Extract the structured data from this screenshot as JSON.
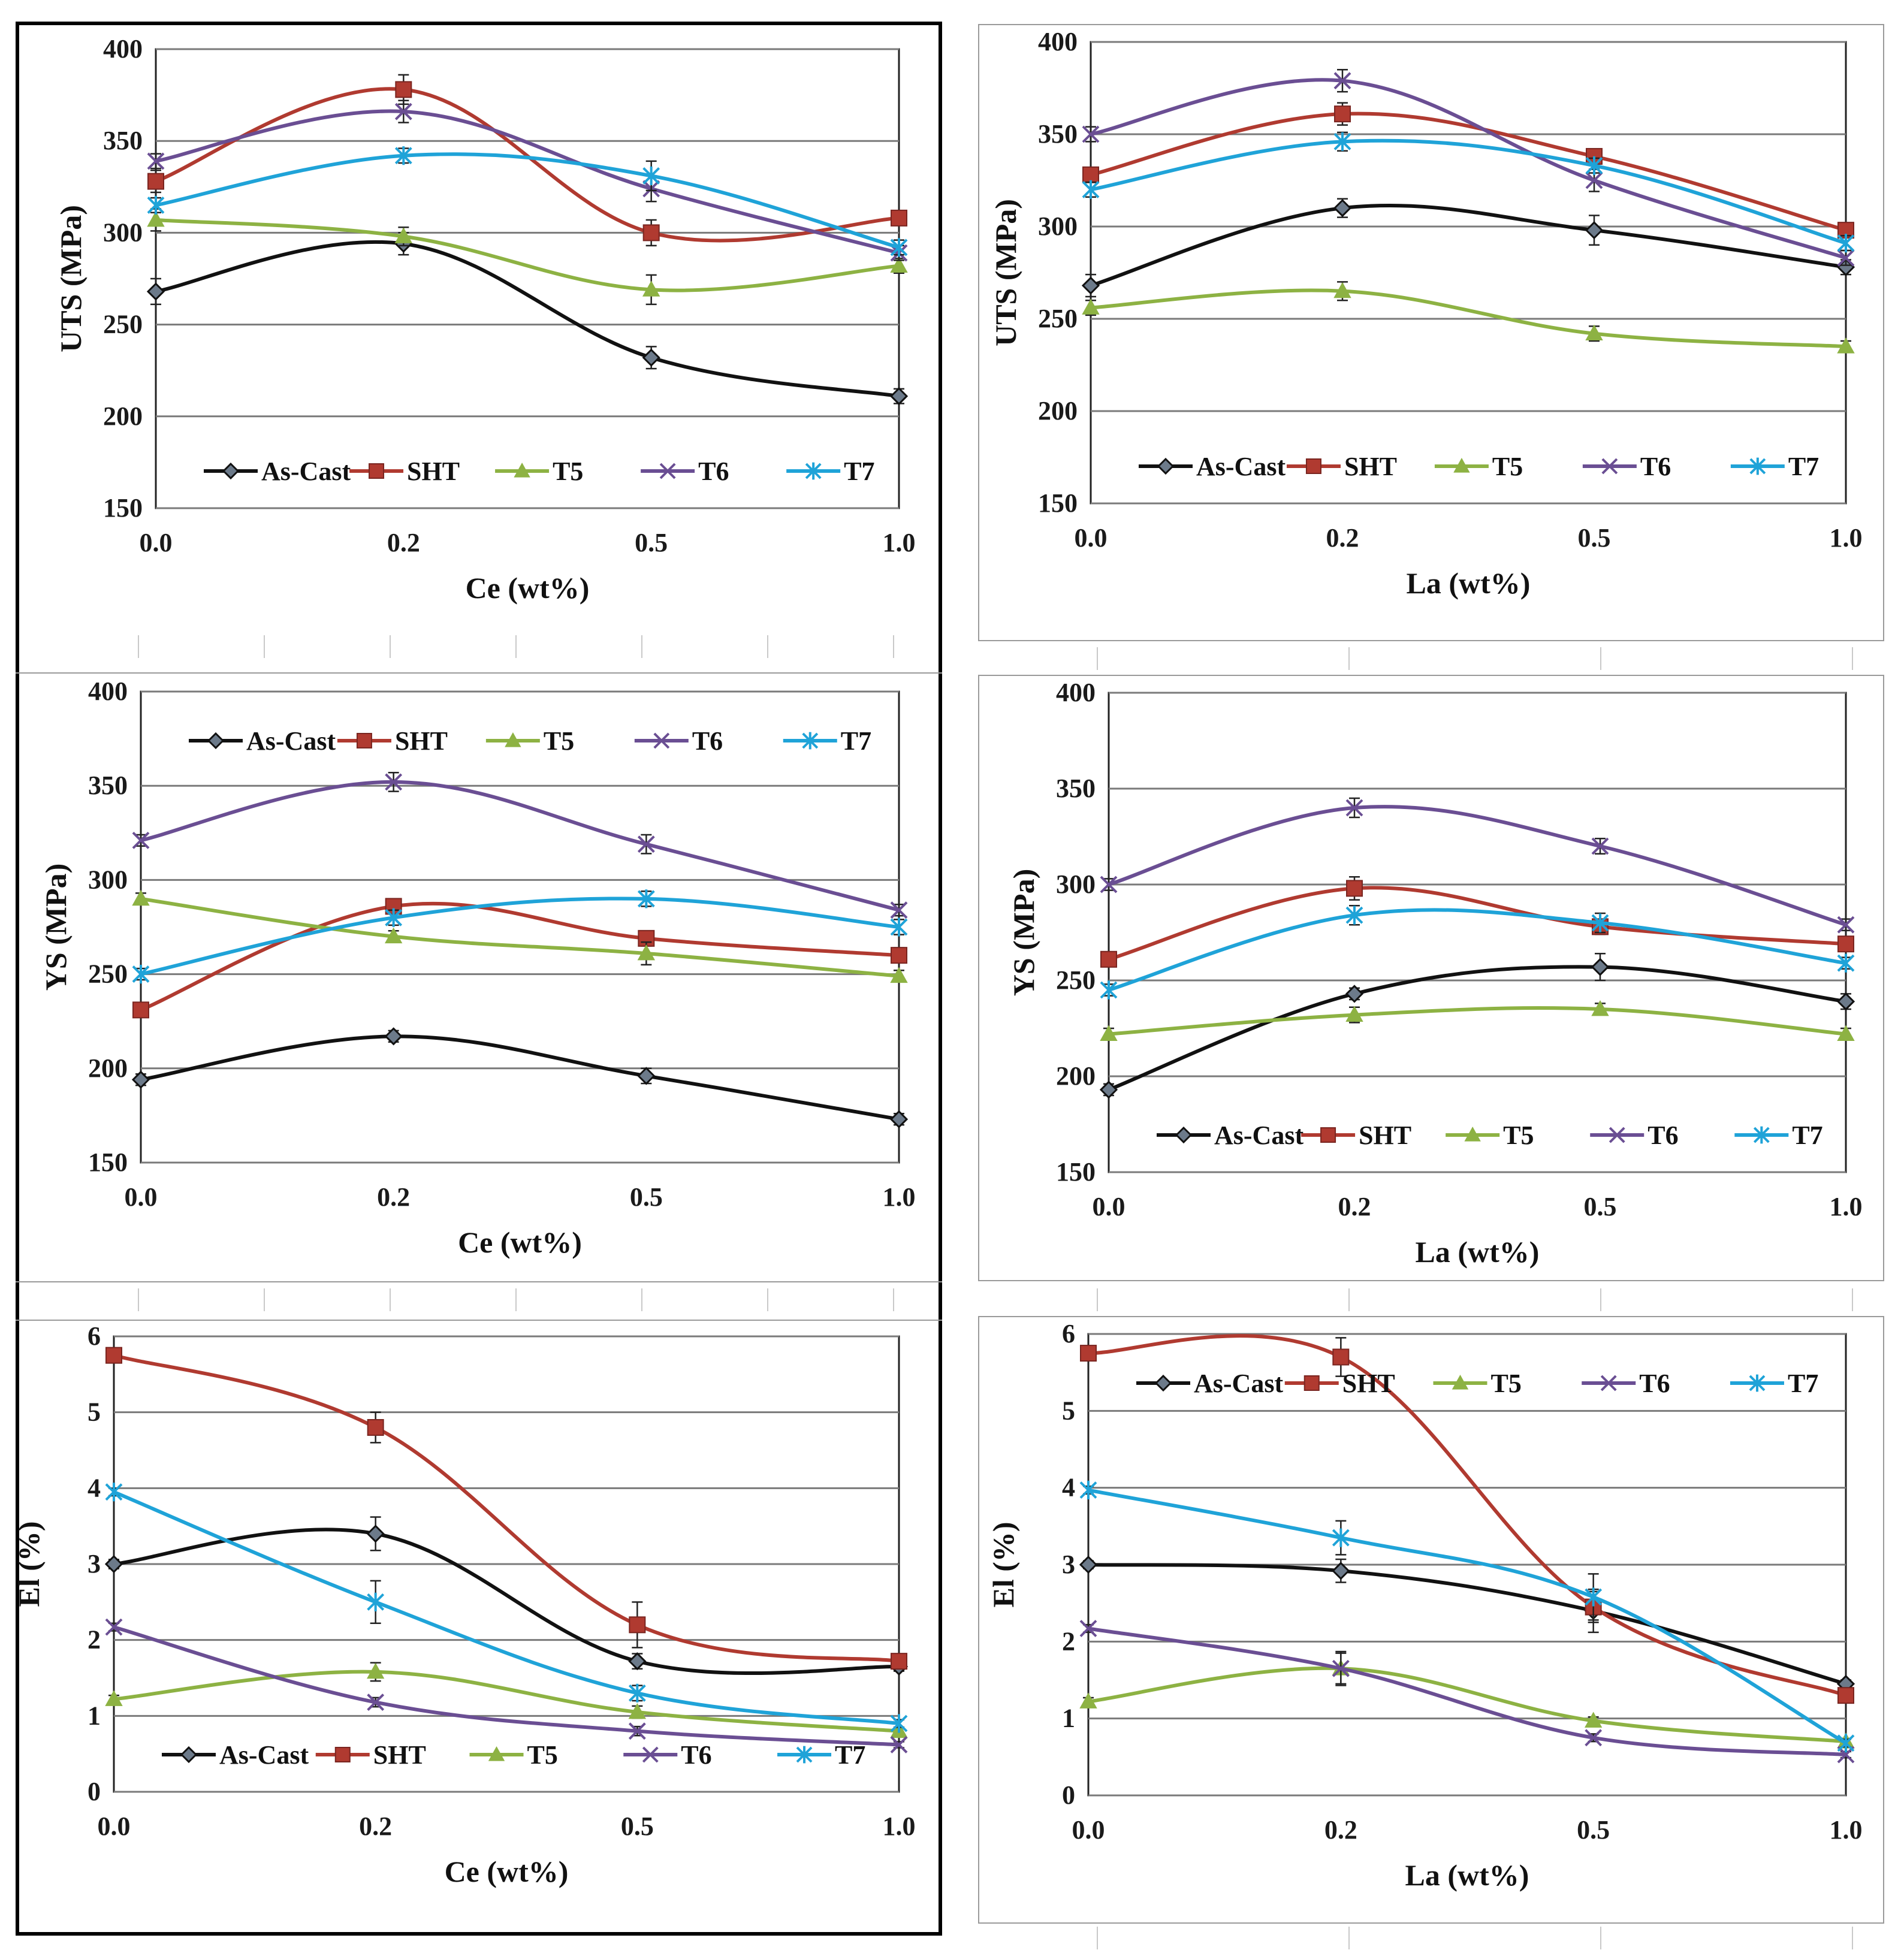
{
  "colors": {
    "As-Cast": "#111111",
    "SHT": "#b03a30",
    "T5": "#8db243",
    "T6": "#6a4e93",
    "T7": "#1fa3d8",
    "grid": "#7a7a7a"
  },
  "chart_data": [
    {
      "id": "uts-ce",
      "type": "line",
      "categories": [
        "0.0",
        "0.2",
        "0.5",
        "1.0"
      ],
      "xlabel": "Ce (wt%)",
      "ylabel": "UTS (MPa)",
      "ylim": [
        150,
        400
      ],
      "yticks": [
        150,
        200,
        250,
        300,
        350,
        400
      ],
      "legend": "bottom",
      "series": [
        {
          "name": "As-Cast",
          "marker": "diamond",
          "values": [
            268,
            294,
            232,
            211
          ],
          "err": [
            7,
            6,
            6,
            4
          ]
        },
        {
          "name": "SHT",
          "marker": "square",
          "values": [
            328,
            378,
            300,
            308
          ],
          "err": [
            6,
            8,
            7,
            4
          ]
        },
        {
          "name": "T5",
          "marker": "triangle",
          "values": [
            307,
            298,
            269,
            282
          ],
          "err": [
            6,
            5,
            8,
            4
          ]
        },
        {
          "name": "T6",
          "marker": "x",
          "values": [
            339,
            366,
            324,
            289
          ],
          "err": [
            4,
            6,
            7,
            4
          ]
        },
        {
          "name": "T7",
          "marker": "star",
          "values": [
            315,
            342,
            331,
            292
          ],
          "err": [
            4,
            4,
            8,
            4
          ]
        }
      ]
    },
    {
      "id": "uts-la",
      "type": "line",
      "categories": [
        "0.0",
        "0.2",
        "0.5",
        "1.0"
      ],
      "xlabel": "La (wt%)",
      "ylabel": "UTS (MPa)",
      "ylim": [
        150,
        400
      ],
      "yticks": [
        150,
        200,
        250,
        300,
        350,
        400
      ],
      "legend": "bottom",
      "series": [
        {
          "name": "As-Cast",
          "marker": "diamond",
          "values": [
            268,
            310,
            298,
            278
          ],
          "err": [
            6,
            5,
            8,
            4
          ]
        },
        {
          "name": "SHT",
          "marker": "square",
          "values": [
            328,
            361,
            338,
            298
          ],
          "err": [
            4,
            6,
            4,
            4
          ]
        },
        {
          "name": "T5",
          "marker": "triangle",
          "values": [
            256,
            265,
            242,
            235
          ],
          "err": [
            4,
            5,
            4,
            3
          ]
        },
        {
          "name": "T6",
          "marker": "x",
          "values": [
            350,
            379,
            325,
            283
          ],
          "err": [
            4,
            6,
            6,
            4
          ]
        },
        {
          "name": "T7",
          "marker": "star",
          "values": [
            320,
            346,
            333,
            291
          ],
          "err": [
            4,
            5,
            4,
            4
          ]
        }
      ]
    },
    {
      "id": "ys-ce",
      "type": "line",
      "categories": [
        "0.0",
        "0.2",
        "0.5",
        "1.0"
      ],
      "xlabel": "Ce (wt%)",
      "ylabel": "YS (MPa)",
      "ylim": [
        150,
        400
      ],
      "yticks": [
        150,
        200,
        250,
        300,
        350,
        400
      ],
      "legend": "top",
      "series": [
        {
          "name": "As-Cast",
          "marker": "diamond",
          "values": [
            194,
            217,
            196,
            173
          ],
          "err": [
            3,
            3,
            4,
            3
          ]
        },
        {
          "name": "SHT",
          "marker": "square",
          "values": [
            231,
            286,
            269,
            260
          ],
          "err": [
            3,
            4,
            4,
            4
          ]
        },
        {
          "name": "T5",
          "marker": "triangle",
          "values": [
            290,
            270,
            261,
            249
          ],
          "err": [
            3,
            3,
            6,
            3
          ]
        },
        {
          "name": "T6",
          "marker": "x",
          "values": [
            321,
            352,
            319,
            284
          ],
          "err": [
            3,
            5,
            5,
            3
          ]
        },
        {
          "name": "T7",
          "marker": "star",
          "values": [
            250,
            280,
            290,
            275
          ],
          "err": [
            3,
            4,
            4,
            4
          ]
        }
      ]
    },
    {
      "id": "ys-la",
      "type": "line",
      "categories": [
        "0.0",
        "0.2",
        "0.5",
        "1.0"
      ],
      "xlabel": "La  (wt%)",
      "ylabel": "YS (MPa)",
      "ylim": [
        150,
        400
      ],
      "yticks": [
        150,
        200,
        250,
        300,
        350,
        400
      ],
      "legend": "bottom",
      "series": [
        {
          "name": "As-Cast",
          "marker": "diamond",
          "values": [
            193,
            243,
            257,
            239
          ],
          "err": [
            3,
            3,
            7,
            4
          ]
        },
        {
          "name": "SHT",
          "marker": "square",
          "values": [
            261,
            298,
            278,
            269
          ],
          "err": [
            3,
            6,
            4,
            3
          ]
        },
        {
          "name": "T5",
          "marker": "triangle",
          "values": [
            222,
            232,
            235,
            222
          ],
          "err": [
            3,
            4,
            3,
            3
          ]
        },
        {
          "name": "T6",
          "marker": "x",
          "values": [
            300,
            340,
            320,
            279
          ],
          "err": [
            3,
            5,
            4,
            3
          ]
        },
        {
          "name": "T7",
          "marker": "star",
          "values": [
            245,
            284,
            280,
            259
          ],
          "err": [
            3,
            5,
            5,
            3
          ]
        }
      ]
    },
    {
      "id": "el-ce",
      "type": "line",
      "categories": [
        "0.0",
        "0.2",
        "0.5",
        "1.0"
      ],
      "xlabel": "Ce  (wt%)",
      "ylabel": "El (%)",
      "ylim": [
        0,
        6
      ],
      "yticks": [
        0,
        1,
        2,
        3,
        4,
        5,
        6
      ],
      "legend": "bottom",
      "series": [
        {
          "name": "As-Cast",
          "marker": "diamond",
          "values": [
            3.0,
            3.4,
            1.72,
            1.65
          ],
          "err": [
            0.06,
            0.22,
            0.1,
            0.06
          ]
        },
        {
          "name": "SHT",
          "marker": "square",
          "values": [
            5.75,
            4.8,
            2.2,
            1.72
          ],
          "err": [
            0.06,
            0.2,
            0.3,
            0.07
          ]
        },
        {
          "name": "T5",
          "marker": "triangle",
          "values": [
            1.22,
            1.58,
            1.05,
            0.8
          ],
          "err": [
            0.05,
            0.12,
            0.08,
            0.05
          ]
        },
        {
          "name": "T6",
          "marker": "x",
          "values": [
            2.17,
            1.18,
            0.8,
            0.62
          ],
          "err": [
            0.05,
            0.06,
            0.06,
            0.04
          ]
        },
        {
          "name": "T7",
          "marker": "star",
          "values": [
            3.95,
            2.5,
            1.3,
            0.9
          ],
          "err": [
            0.05,
            0.28,
            0.1,
            0.05
          ]
        }
      ]
    },
    {
      "id": "el-la",
      "type": "line",
      "categories": [
        "0.0",
        "0.2",
        "0.5",
        "1.0"
      ],
      "xlabel": "La (wt%)",
      "ylabel": "El (%)",
      "ylim": [
        0,
        6
      ],
      "yticks": [
        0,
        1,
        2,
        3,
        4,
        5,
        6
      ],
      "legend": "top",
      "series": [
        {
          "name": "As-Cast",
          "marker": "diamond",
          "values": [
            3.0,
            2.92,
            2.4,
            1.45
          ],
          "err": [
            0.05,
            0.15,
            0.28,
            0.05
          ]
        },
        {
          "name": "SHT",
          "marker": "square",
          "values": [
            5.75,
            5.7,
            2.45,
            1.3
          ],
          "err": [
            0.05,
            0.25,
            0.2,
            0.05
          ]
        },
        {
          "name": "T5",
          "marker": "triangle",
          "values": [
            1.22,
            1.65,
            0.97,
            0.7
          ],
          "err": [
            0.05,
            0.22,
            0.05,
            0.04
          ]
        },
        {
          "name": "T6",
          "marker": "x",
          "values": [
            2.17,
            1.65,
            0.75,
            0.53
          ],
          "err": [
            0.05,
            0.2,
            0.05,
            0.04
          ]
        },
        {
          "name": "T7",
          "marker": "star",
          "values": [
            3.97,
            3.35,
            2.58,
            0.68
          ],
          "err": [
            0.05,
            0.22,
            0.3,
            0.05
          ]
        }
      ]
    }
  ]
}
